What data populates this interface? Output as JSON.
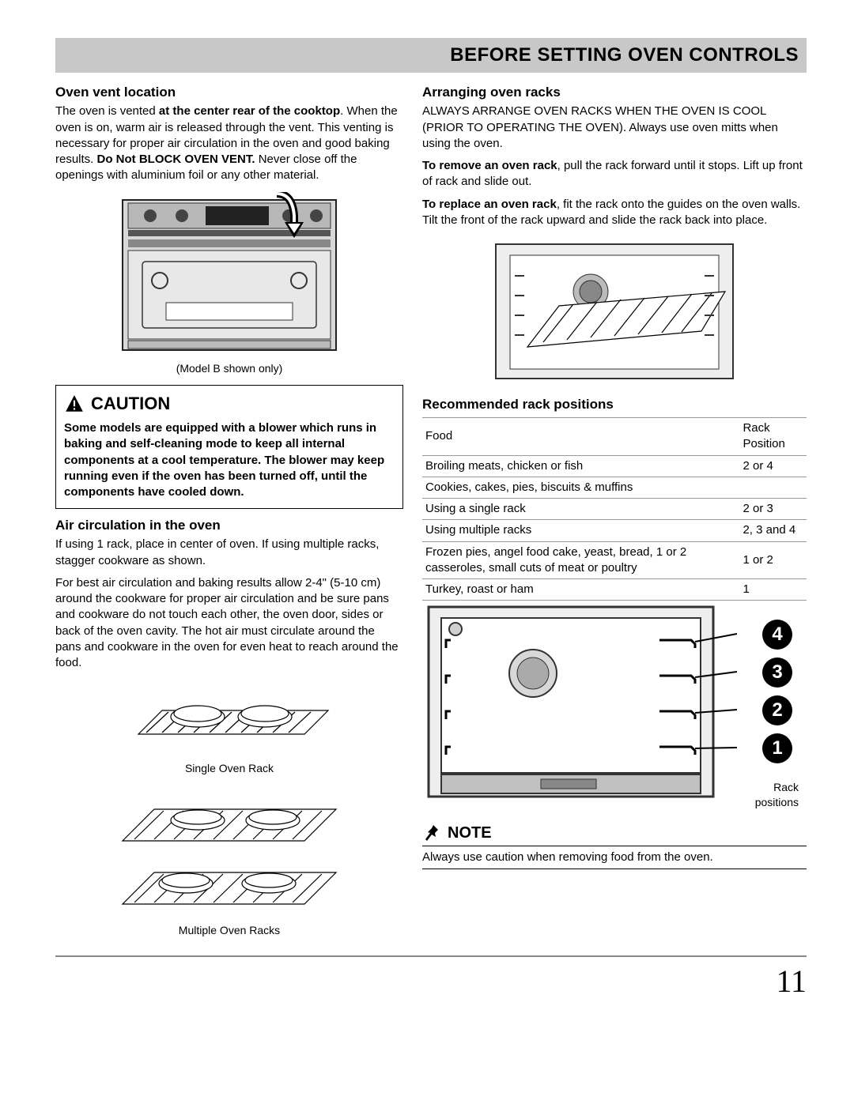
{
  "title_bar": "BEFORE SETTING OVEN CONTROLS",
  "page_number": "11",
  "left": {
    "h_vent": "Oven vent location",
    "vent_p1a": "The oven is vented ",
    "vent_p1b": "at the center rear of the cooktop",
    "vent_p1c": ". When the oven is on, warm air is released through the vent. This venting is necessary for proper air circulation in the oven and good baking results. ",
    "vent_p1d": "Do Not BLOCK OVEN VENT.",
    "vent_p1e": " Never close off the openings with aluminium foil or any other material.",
    "fig1_caption": "(Model B shown only)",
    "caution_label": "CAUTION",
    "caution_text": "Some models are equipped with a blower which runs in baking and self-cleaning mode to keep all internal components at a cool temperature. The blower may keep running even if the oven has been turned off, until the components have cooled down.",
    "h_air": "Air circulation in the oven",
    "air_p1": "If using 1 rack, place in center of oven. If using multiple racks, stagger cookware as shown.",
    "air_p2": "For best air circulation and baking results allow 2-4\" (5-10 cm) around the cookware for proper air circulation and be sure pans and cookware do not touch each other, the oven door, sides or back of the oven cavity. The hot air must circulate around the pans and cookware in the oven for even heat to reach around the food.",
    "fig2a_caption": "Single Oven Rack",
    "fig2b_caption": "Multiple Oven Racks"
  },
  "right": {
    "h_arr": "Arranging oven racks",
    "arr_p1": "ALWAYS ARRANGE OVEN RACKS WHEN THE OVEN IS COOL (PRIOR TO OPERATING THE OVEN). Always use oven mitts when using the oven.",
    "arr_remove_b": "To remove an oven rack",
    "arr_remove": ", pull the rack forward until it stops. Lift up front of rack and slide out.",
    "arr_replace_b": "To replace an oven rack",
    "arr_replace": ", fit the rack onto the guides on the oven walls. Tilt the front of the rack upward and slide the rack back into place.",
    "h_rec": "Recommended rack positions",
    "table": {
      "head_food": "Food",
      "head_pos": "Rack Position",
      "rows": [
        {
          "food": "Broiling meats, chicken or fish",
          "pos": "2 or 4"
        },
        {
          "food": "Cookies, cakes, pies, biscuits & muffins",
          "pos": ""
        },
        {
          "food": "Using a single rack",
          "pos": "2 or 3",
          "indent": true
        },
        {
          "food": "Using multiple racks",
          "pos": "2, 3 and 4",
          "indent": true
        },
        {
          "food": "Frozen pies, angel food cake, yeast, bread, 1 or 2 casseroles, small cuts of meat or poultry",
          "pos": "1 or 2"
        },
        {
          "food": "Turkey, roast or ham",
          "pos": "1"
        }
      ]
    },
    "rack_nums": [
      "4",
      "3",
      "2",
      "1"
    ],
    "rack_label_a": "Rack",
    "rack_label_b": "positions",
    "note_label": "NOTE",
    "note_text": "Always use caution when removing food from the oven."
  }
}
